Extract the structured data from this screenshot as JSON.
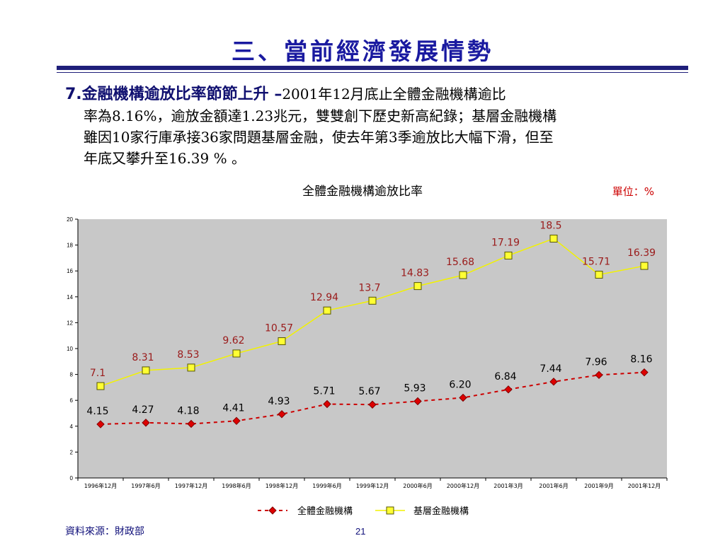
{
  "slide": {
    "title": "三、當前經濟發展情勢",
    "lead": "7.金融機構逾放比率節節上升 –",
    "line1": "2001年12月底止全體金融機構逾比",
    "line2": "率為8.16%，逾放金額達1.23兆元，雙雙創下歷史新高紀錄；基層金融機構",
    "line3": "雖因10家行庫承接36家問題基層金融，使去年第3季逾放比大幅下滑，但至",
    "line4": "年底又攀升至16.39 % 。",
    "source": "資料來源：財政部",
    "page_number": "21"
  },
  "chart_data": {
    "type": "line",
    "title": "全體金融機構逾放比率",
    "unit": "單位：%",
    "categories": [
      "1996年12月",
      "1997年6月",
      "1997年12月",
      "1998年6月",
      "1998年12月",
      "1999年6月",
      "1999年12月",
      "2000年6月",
      "2000年12月",
      "2001年3月",
      "2001年6月",
      "2001年9月",
      "2001年12月"
    ],
    "ylim": [
      0,
      20
    ],
    "yticks": [
      0,
      2,
      4,
      6,
      8,
      10,
      12,
      14,
      16,
      18,
      20
    ],
    "grid": false,
    "legend": "bottom",
    "series": [
      {
        "name": "全體金融機構",
        "values": [
          4.15,
          4.27,
          4.18,
          4.41,
          4.93,
          5.71,
          5.67,
          5.93,
          6.2,
          6.84,
          7.44,
          7.96,
          8.16
        ],
        "labels": [
          "4.15",
          "4.27",
          "4.18",
          "4.41",
          "4.93",
          "5.71",
          "5.67",
          "5.93",
          "6.20",
          "6.84",
          "7.44",
          "7.96",
          "8.16"
        ],
        "color": "#cc0000",
        "label_color": "#000000",
        "marker": "diamond",
        "dash": true
      },
      {
        "name": "基層金融機構",
        "values": [
          7.1,
          8.31,
          8.53,
          9.62,
          10.57,
          12.94,
          13.7,
          14.83,
          15.68,
          17.19,
          18.5,
          15.71,
          16.39
        ],
        "labels": [
          "7.1",
          "8.31",
          "8.53",
          "9.62",
          "10.57",
          "12.94",
          "13.7",
          "14.83",
          "15.68",
          "17.19",
          "18.5",
          "15.71",
          "16.39"
        ],
        "color": "#f2f200",
        "label_color": "#9a1a1a",
        "marker": "square",
        "dash": false
      }
    ]
  },
  "colors": {
    "title": "#1a1aa0",
    "rule": "#1f1f7a",
    "plot_bg": "#c8c8c8"
  }
}
